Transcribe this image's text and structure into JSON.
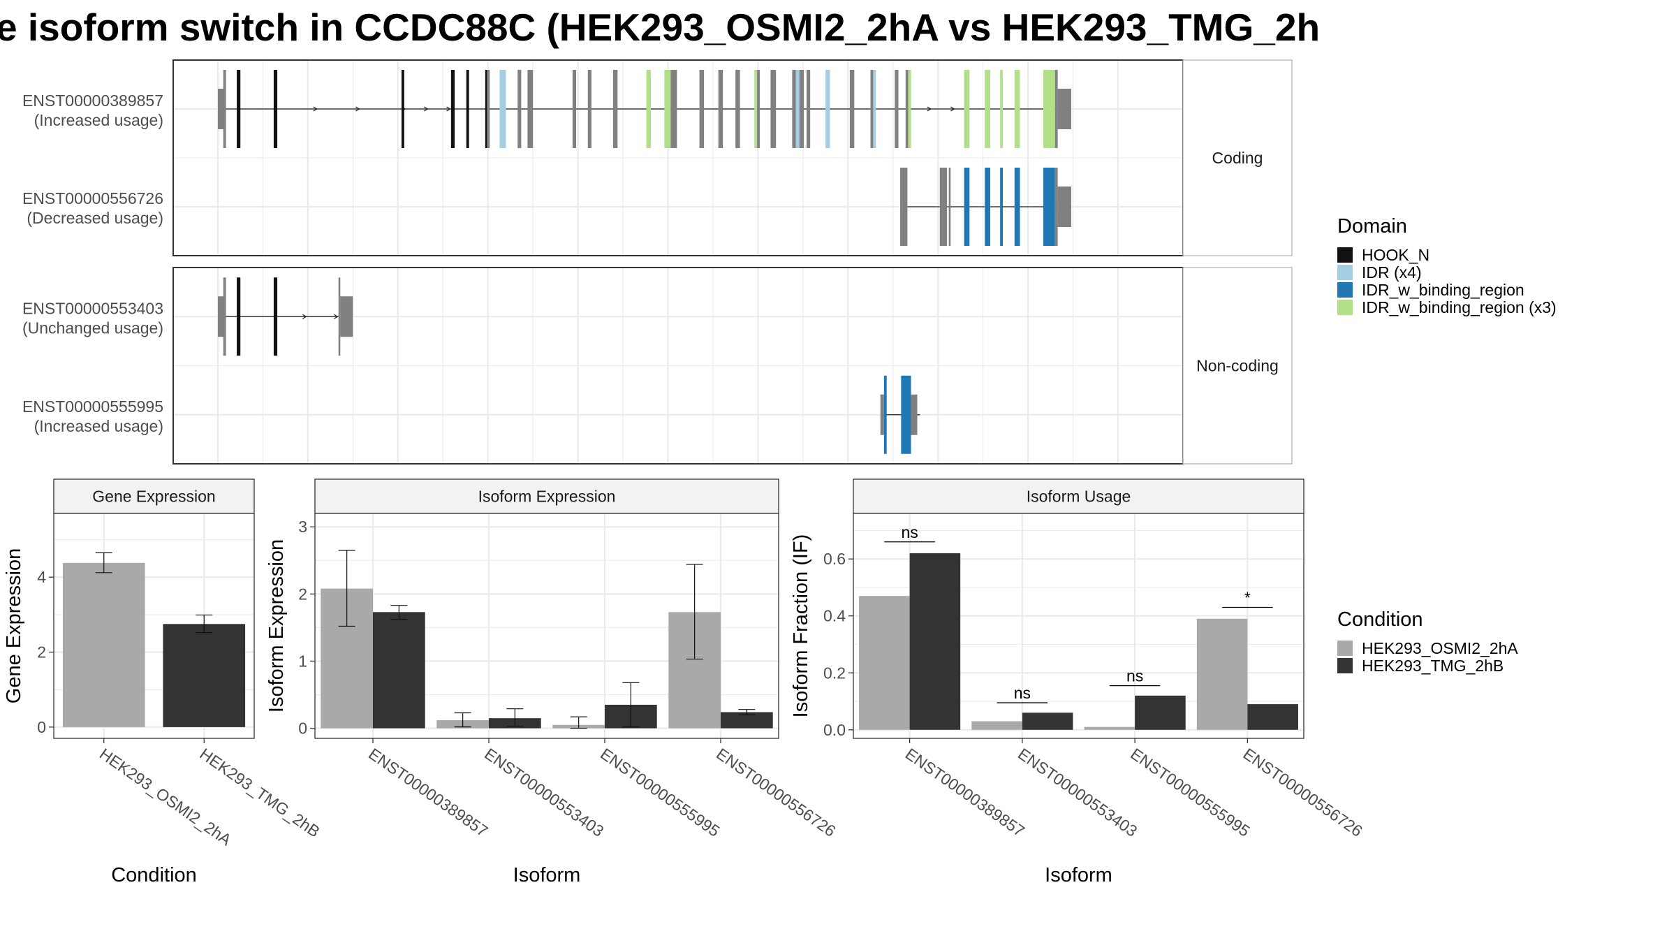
{
  "title": "e isoform switch in CCDC88C (HEK293_OSMI2_2hA vs HEK293_TMG_2h",
  "colors": {
    "HOOK_N": "#111111",
    "IDR (x4)": "#a6cee3",
    "IDR_w_binding_region": "#1f78b4",
    "IDR_w_binding_region (x3)": "#b2df8a",
    "noncoding": "#808080",
    "cond1": "#a9a9a9",
    "cond2": "#333333",
    "strip": "#f2f2f2",
    "grid": "#ebebeb",
    "panel_border": "#333333"
  },
  "structure": {
    "genomic_range": [
      0,
      1000
    ],
    "panels": [
      {
        "label": "Coding",
        "transcripts": [
          {
            "name": "ENST00000389857",
            "usage": "(Increased usage)",
            "intron": [
              7,
              948
            ],
            "arrows": [
              110,
              157,
              208,
              233,
              258,
              792,
              818
            ],
            "exons": [
              {
                "s": 0,
                "e": 7,
                "h": "utr",
                "c": "noncoding"
              },
              {
                "s": 6,
                "e": 9,
                "h": "cds",
                "c": "noncoding"
              },
              {
                "s": 21,
                "e": 25,
                "h": "cds",
                "c": "HOOK_N"
              },
              {
                "s": 62,
                "e": 66,
                "h": "cds",
                "c": "HOOK_N"
              },
              {
                "s": 204,
                "e": 207,
                "h": "cds",
                "c": "HOOK_N"
              },
              {
                "s": 259,
                "e": 263,
                "h": "cds",
                "c": "HOOK_N"
              },
              {
                "s": 276,
                "e": 279,
                "h": "cds",
                "c": "HOOK_N"
              },
              {
                "s": 297,
                "e": 299,
                "h": "cds",
                "c": "HOOK_N"
              },
              {
                "s": 299,
                "e": 302,
                "h": "cds",
                "c": "noncoding"
              },
              {
                "s": 313,
                "e": 320,
                "h": "cds",
                "c": "IDR (x4)"
              },
              {
                "s": 333,
                "e": 337,
                "h": "cds",
                "c": "noncoding"
              },
              {
                "s": 344,
                "e": 350,
                "h": "cds",
                "c": "noncoding"
              },
              {
                "s": 394,
                "e": 398,
                "h": "cds",
                "c": "noncoding"
              },
              {
                "s": 411,
                "e": 415,
                "h": "cds",
                "c": "noncoding"
              },
              {
                "s": 439,
                "e": 444,
                "h": "cds",
                "c": "noncoding"
              },
              {
                "s": 476,
                "e": 481,
                "h": "cds",
                "c": "IDR_w_binding_region (x3)"
              },
              {
                "s": 496,
                "e": 503,
                "h": "cds",
                "c": "IDR_w_binding_region (x3)"
              },
              {
                "s": 503,
                "e": 510,
                "h": "cds",
                "c": "noncoding"
              },
              {
                "s": 535,
                "e": 540,
                "h": "cds",
                "c": "noncoding"
              },
              {
                "s": 556,
                "e": 561,
                "h": "cds",
                "c": "noncoding"
              },
              {
                "s": 575,
                "e": 580,
                "h": "cds",
                "c": "noncoding"
              },
              {
                "s": 596,
                "e": 599,
                "h": "cds",
                "c": "IDR_w_binding_region (x3)"
              },
              {
                "s": 599,
                "e": 602,
                "h": "cds",
                "c": "noncoding"
              },
              {
                "s": 614,
                "e": 620,
                "h": "cds",
                "c": "noncoding"
              },
              {
                "s": 638,
                "e": 642,
                "h": "cds",
                "c": "noncoding"
              },
              {
                "s": 642,
                "e": 646,
                "h": "cds",
                "c": "IDR (x4)"
              },
              {
                "s": 646,
                "e": 651,
                "h": "cds",
                "c": "noncoding"
              },
              {
                "s": 654,
                "e": 658,
                "h": "cds",
                "c": "noncoding"
              },
              {
                "s": 675,
                "e": 680,
                "h": "cds",
                "c": "IDR (x4)"
              },
              {
                "s": 702,
                "e": 707,
                "h": "cds",
                "c": "noncoding"
              },
              {
                "s": 725,
                "e": 728,
                "h": "cds",
                "c": "noncoding"
              },
              {
                "s": 728,
                "e": 731,
                "h": "cds",
                "c": "IDR (x4)"
              },
              {
                "s": 752,
                "e": 756,
                "h": "cds",
                "c": "noncoding"
              },
              {
                "s": 764,
                "e": 767,
                "h": "cds",
                "c": "noncoding"
              },
              {
                "s": 767,
                "e": 770,
                "h": "cds",
                "c": "IDR_w_binding_region (x3)"
              },
              {
                "s": 829,
                "e": 835,
                "h": "cds",
                "c": "IDR_w_binding_region (x3)"
              },
              {
                "s": 852,
                "e": 858,
                "h": "cds",
                "c": "IDR_w_binding_region (x3)"
              },
              {
                "s": 869,
                "e": 872,
                "h": "cds",
                "c": "IDR_w_binding_region (x3)"
              },
              {
                "s": 885,
                "e": 891,
                "h": "cds",
                "c": "IDR_w_binding_region (x3)"
              },
              {
                "s": 917,
                "e": 930,
                "h": "cds",
                "c": "IDR_w_binding_region (x3)"
              },
              {
                "s": 930,
                "e": 933,
                "h": "cds",
                "c": "noncoding"
              },
              {
                "s": 933,
                "e": 948,
                "h": "utr",
                "c": "noncoding"
              }
            ]
          },
          {
            "name": "ENST00000556726",
            "usage": "(Decreased usage)",
            "intron": [
              763,
              934
            ],
            "arrows": [],
            "exons": [
              {
                "s": 758,
                "e": 766,
                "h": "cds",
                "c": "noncoding"
              },
              {
                "s": 802,
                "e": 810,
                "h": "cds",
                "c": "noncoding"
              },
              {
                "s": 812,
                "e": 814,
                "h": "cds",
                "c": "noncoding"
              },
              {
                "s": 829,
                "e": 835,
                "h": "cds",
                "c": "IDR_w_binding_region"
              },
              {
                "s": 852,
                "e": 858,
                "h": "cds",
                "c": "IDR_w_binding_region"
              },
              {
                "s": 869,
                "e": 872,
                "h": "cds",
                "c": "IDR_w_binding_region"
              },
              {
                "s": 885,
                "e": 891,
                "h": "cds",
                "c": "IDR_w_binding_region"
              },
              {
                "s": 917,
                "e": 930,
                "h": "cds",
                "c": "IDR_w_binding_region"
              },
              {
                "s": 930,
                "e": 933,
                "h": "cds",
                "c": "noncoding"
              },
              {
                "s": 933,
                "e": 948,
                "h": "utr",
                "c": "noncoding"
              }
            ]
          }
        ]
      },
      {
        "label": "Non-coding",
        "transcripts": [
          {
            "name": "ENST00000553403",
            "usage": "(Unchanged usage)",
            "intron": [
              7,
              135
            ],
            "arrows": [
              98,
              133
            ],
            "exons": [
              {
                "s": 0,
                "e": 7,
                "h": "utr",
                "c": "noncoding"
              },
              {
                "s": 6,
                "e": 9,
                "h": "cds",
                "c": "noncoding"
              },
              {
                "s": 21,
                "e": 25,
                "h": "cds",
                "c": "HOOK_N"
              },
              {
                "s": 62,
                "e": 66,
                "h": "cds",
                "c": "HOOK_N"
              },
              {
                "s": 134,
                "e": 136,
                "h": "cds",
                "c": "noncoding"
              },
              {
                "s": 136,
                "e": 150,
                "h": "utr",
                "c": "noncoding"
              }
            ]
          },
          {
            "name": "ENST00000555995",
            "usage": "(Increased usage)",
            "intron": [
              740,
              780
            ],
            "arrows": [],
            "exons": [
              {
                "s": 736,
                "e": 740,
                "h": "utr",
                "c": "noncoding"
              },
              {
                "s": 740,
                "e": 743,
                "h": "cds",
                "c": "IDR_w_binding_region"
              },
              {
                "s": 759,
                "e": 770,
                "h": "cds",
                "c": "IDR_w_binding_region"
              },
              {
                "s": 770,
                "e": 777,
                "h": "utr",
                "c": "noncoding"
              }
            ]
          }
        ]
      }
    ]
  },
  "legend_domain": {
    "title": "Domain",
    "items": [
      "HOOK_N",
      "IDR (x4)",
      "IDR_w_binding_region",
      "IDR_w_binding_region (x3)"
    ]
  },
  "legend_condition": {
    "title": "Condition",
    "items": [
      "HEK293_OSMI2_2hA",
      "HEK293_TMG_2hB"
    ]
  },
  "chart_data": [
    {
      "type": "bar",
      "title": "Gene Expression",
      "xlabel": "Condition",
      "ylabel": "Gene Expression",
      "ylim": [
        -0.3,
        5.7
      ],
      "yticks": [
        0,
        2,
        4
      ],
      "categories": [
        "HEK293_OSMI2_2hA",
        "HEK293_TMG_2hB"
      ],
      "series": [
        {
          "name": "HEK293_OSMI2_2hA",
          "values": [
            4.38,
            null
          ],
          "err": [
            [
              4.12,
              4.65
            ],
            null
          ]
        },
        {
          "name": "HEK293_TMG_2hB",
          "values": [
            null,
            2.75
          ],
          "err": [
            null,
            [
              2.52,
              2.99
            ]
          ]
        }
      ]
    },
    {
      "type": "bar",
      "title": "Isoform Expression",
      "xlabel": "Isoform",
      "ylabel": "Isoform Expression",
      "ylim": [
        -0.15,
        3.2
      ],
      "yticks": [
        0,
        1,
        2,
        3
      ],
      "categories": [
        "ENST00000389857",
        "ENST00000553403",
        "ENST00000555995",
        "ENST00000556726"
      ],
      "series": [
        {
          "name": "HEK293_OSMI2_2hA",
          "values": [
            2.08,
            0.12,
            0.05,
            1.73
          ],
          "err": [
            [
              1.52,
              2.65
            ],
            [
              0.02,
              0.23
            ],
            [
              0.0,
              0.17
            ],
            [
              1.03,
              2.44
            ]
          ]
        },
        {
          "name": "HEK293_TMG_2hB",
          "values": [
            1.73,
            0.15,
            0.35,
            0.24
          ],
          "err": [
            [
              1.62,
              1.83
            ],
            [
              0.03,
              0.29
            ],
            [
              0.02,
              0.68
            ],
            [
              0.2,
              0.28
            ]
          ]
        }
      ]
    },
    {
      "type": "bar",
      "title": "Isoform Usage",
      "xlabel": "Isoform",
      "ylabel": "Isoform Fraction (IF)",
      "ylim": [
        -0.03,
        0.76
      ],
      "yticks": [
        0.0,
        0.2,
        0.4,
        0.6
      ],
      "categories": [
        "ENST00000389857",
        "ENST00000553403",
        "ENST00000555995",
        "ENST00000556726"
      ],
      "series": [
        {
          "name": "HEK293_OSMI2_2hA",
          "values": [
            0.47,
            0.03,
            0.01,
            0.39
          ]
        },
        {
          "name": "HEK293_TMG_2hB",
          "values": [
            0.62,
            0.06,
            0.12,
            0.09
          ]
        }
      ],
      "significance": [
        {
          "label": "ns",
          "y": 0.66
        },
        {
          "label": "ns",
          "y": 0.095
        },
        {
          "label": "ns",
          "y": 0.155
        },
        {
          "label": "*",
          "y": 0.43
        }
      ]
    }
  ]
}
